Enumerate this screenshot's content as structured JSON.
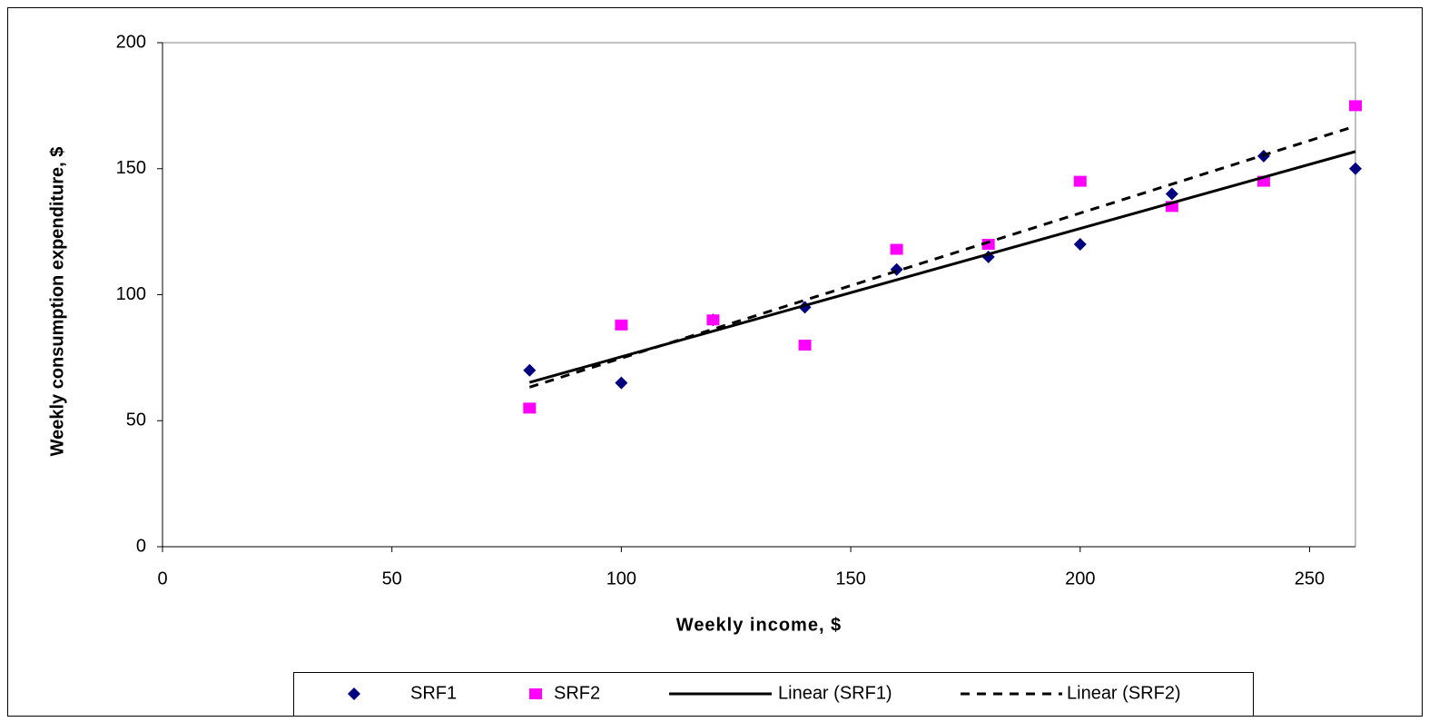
{
  "chart_data": {
    "type": "scatter",
    "x_label": "Weekly income, $",
    "y_label": "Weekly consumption expenditure, $",
    "x": [
      80,
      100,
      120,
      140,
      160,
      180,
      200,
      220,
      240,
      260
    ],
    "series": [
      {
        "name": "SRF1",
        "type": "scatter",
        "marker": "diamond",
        "color": "#000080",
        "values": [
          70,
          65,
          90,
          95,
          110,
          115,
          120,
          140,
          155,
          150
        ]
      },
      {
        "name": "SRF2",
        "type": "scatter",
        "marker": "square",
        "color": "#ff00ff",
        "values": [
          55,
          88,
          90,
          80,
          118,
          120,
          145,
          135,
          145,
          175
        ]
      },
      {
        "name": "Linear (SRF1)",
        "type": "line",
        "style": "solid",
        "color": "#000000",
        "x": [
          80,
          260
        ],
        "values": [
          65.2,
          156.8
        ]
      },
      {
        "name": "Linear (SRF2)",
        "type": "line",
        "style": "dashed",
        "color": "#000000",
        "x": [
          80,
          260
        ],
        "values": [
          63.3,
          166.9
        ]
      }
    ],
    "xlim": [
      0,
      260
    ],
    "xticks": [
      0,
      50,
      100,
      150,
      200,
      250
    ],
    "ylim": [
      0,
      200
    ],
    "yticks": [
      0,
      50,
      100,
      150,
      200
    ],
    "grid": false,
    "legend": "bottom"
  }
}
